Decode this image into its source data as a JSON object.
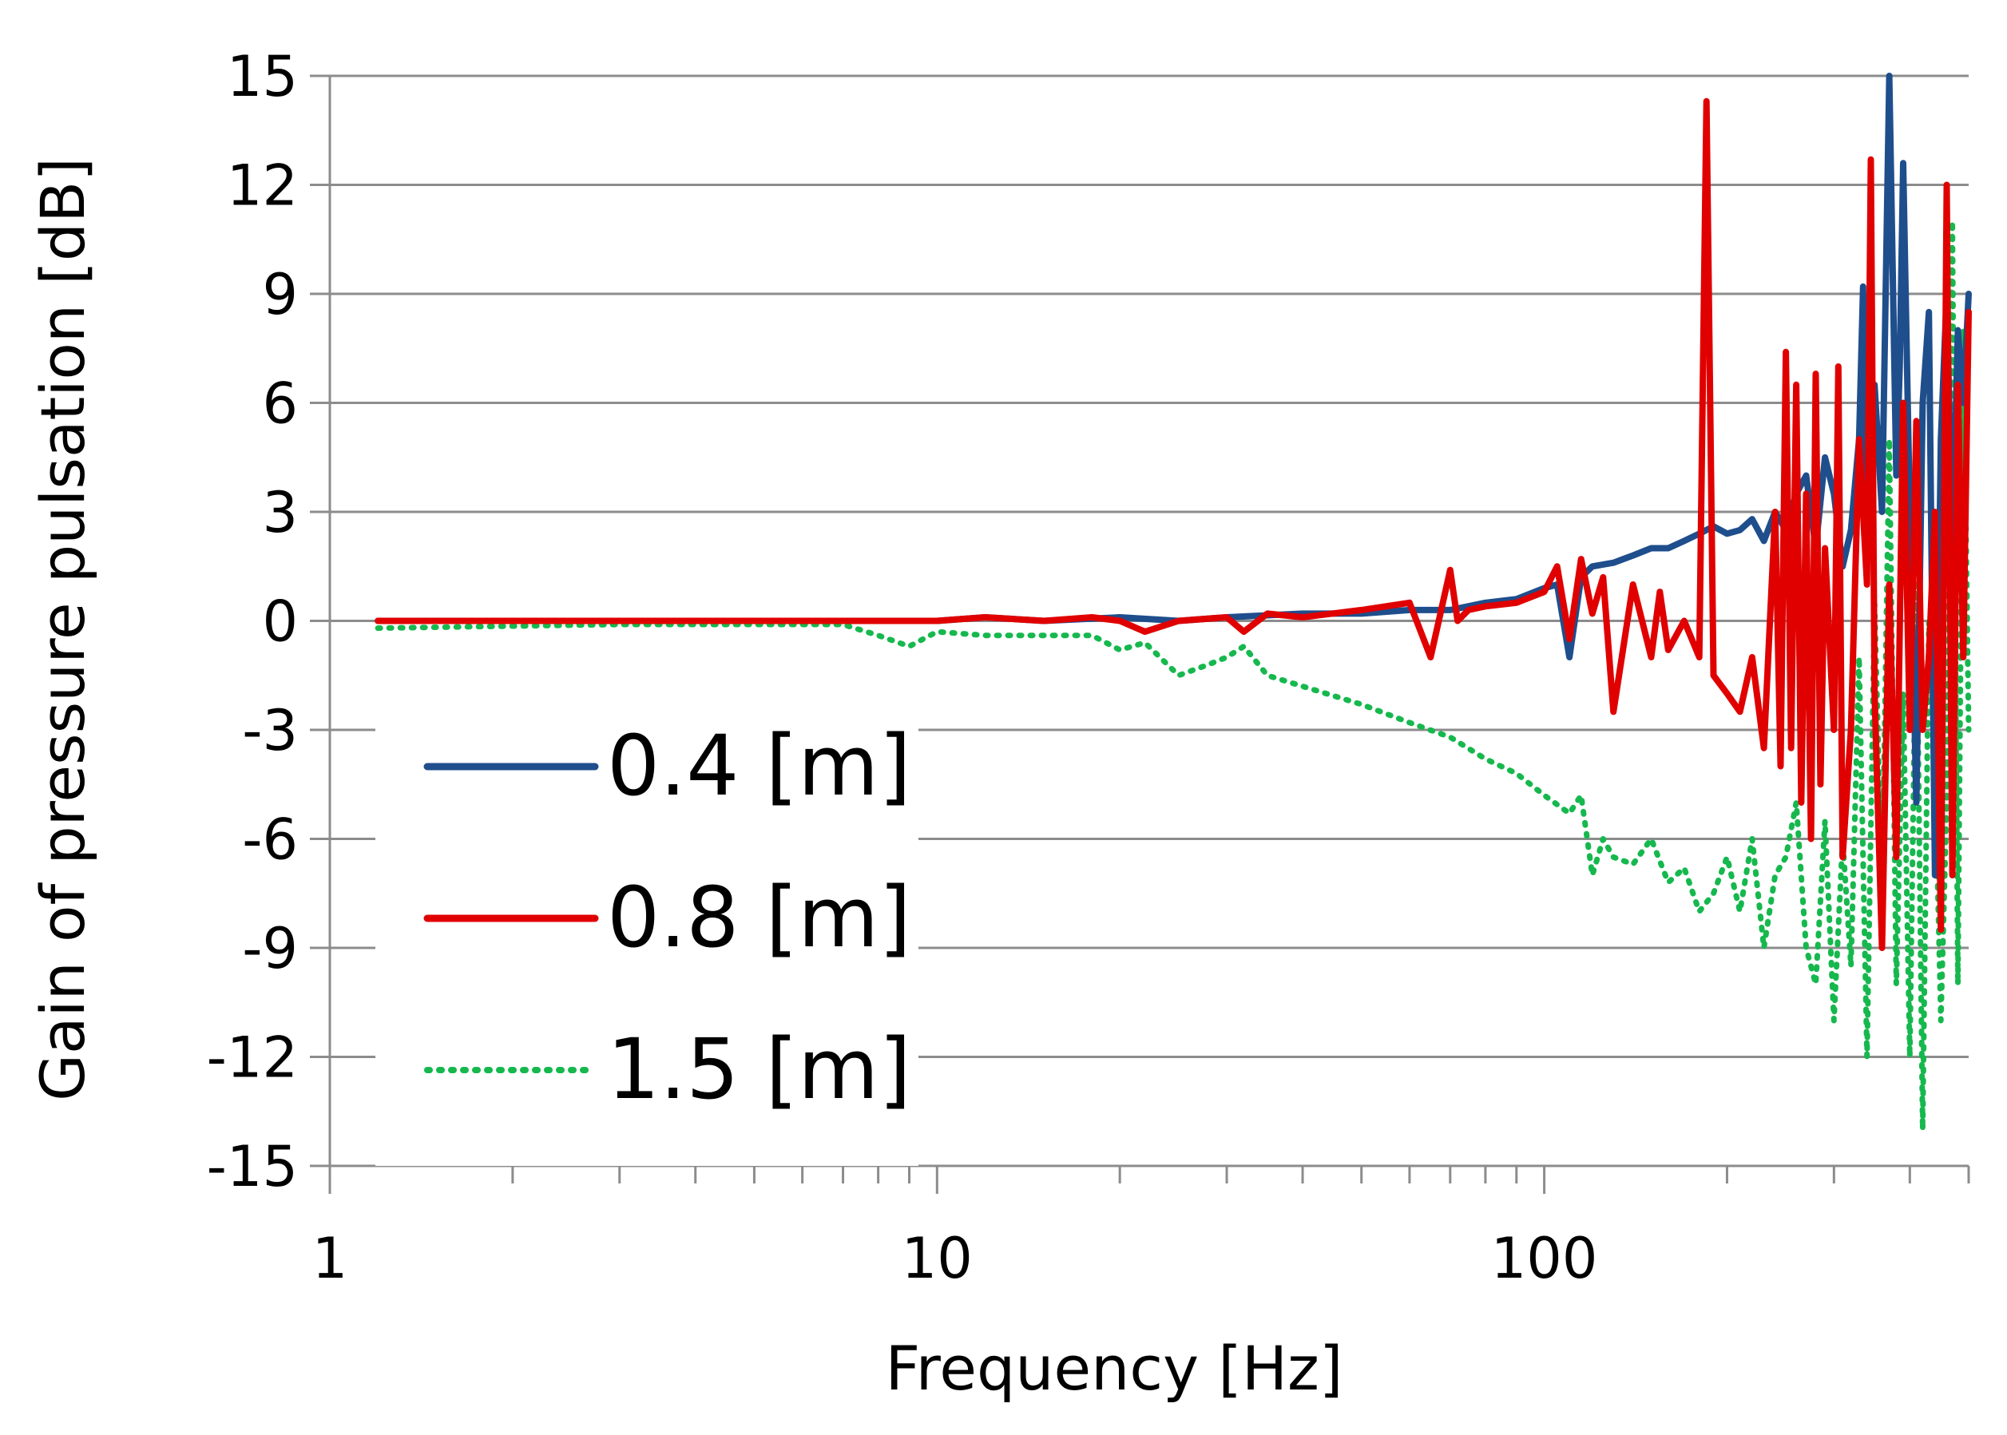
{
  "chart_data": {
    "type": "line",
    "xscale": "log",
    "xlim": [
      1,
      500
    ],
    "ylim": [
      -15,
      15
    ],
    "xlabel": "Frequency [Hz]",
    "ylabel": "Gain of pressure pulsation [dB]",
    "x_ticks": [
      1,
      10,
      100
    ],
    "x_tick_labels": [
      "1",
      "10",
      "100"
    ],
    "y_ticks": [
      15,
      12,
      9,
      6,
      3,
      0,
      -3,
      -6,
      -9,
      -12,
      -15
    ],
    "y_tick_labels": [
      "15",
      "12",
      "9",
      "6",
      "3",
      "0",
      "-3",
      "-6",
      "-9",
      "-12",
      "-15"
    ],
    "grid": "horizontal",
    "legend_position": "lower-left",
    "series": [
      {
        "name": "0.4 [m]",
        "color": "#1f4e8c",
        "style": "solid",
        "x": [
          1.2,
          5,
          10,
          12,
          15,
          20,
          25,
          30,
          40,
          50,
          60,
          70,
          80,
          90,
          100,
          105,
          110,
          115,
          120,
          130,
          140,
          150,
          160,
          170,
          180,
          190,
          200,
          210,
          220,
          230,
          240,
          250,
          260,
          270,
          280,
          290,
          300,
          310,
          320,
          330,
          335,
          340,
          350,
          360,
          370,
          380,
          385,
          390,
          400,
          410,
          420,
          430,
          440,
          450,
          460,
          470,
          480,
          490,
          500
        ],
        "y": [
          0,
          0,
          0,
          0.1,
          0,
          0.1,
          0,
          0.1,
          0.2,
          0.2,
          0.3,
          0.3,
          0.5,
          0.6,
          0.9,
          1.0,
          -1.0,
          1.2,
          1.5,
          1.6,
          1.8,
          2.0,
          2.0,
          2.2,
          2.4,
          2.6,
          2.4,
          2.5,
          2.8,
          2.2,
          3.0,
          2.5,
          3.5,
          4.0,
          2.0,
          4.5,
          3.5,
          1.5,
          2.5,
          5.0,
          9.2,
          2.0,
          6.5,
          3.0,
          15.0,
          4.0,
          7.0,
          12.6,
          3.0,
          -5.0,
          6.0,
          8.5,
          -7.0,
          5.0,
          9.0,
          2.0,
          8.0,
          6.0,
          9.0
        ]
      },
      {
        "name": "0.8 [m]",
        "color": "#e00000",
        "style": "solid",
        "x": [
          1.2,
          5,
          8,
          10,
          12,
          15,
          18,
          20,
          22,
          25,
          30,
          32,
          35,
          40,
          50,
          60,
          65,
          70,
          72,
          75,
          80,
          90,
          100,
          105,
          110,
          115,
          120,
          125,
          130,
          140,
          150,
          155,
          160,
          170,
          180,
          185,
          190,
          200,
          210,
          220,
          230,
          240,
          245,
          250,
          255,
          260,
          265,
          270,
          275,
          280,
          285,
          290,
          300,
          305,
          310,
          320,
          330,
          340,
          345,
          350,
          360,
          370,
          380,
          390,
          400,
          410,
          420,
          430,
          440,
          450,
          460,
          470,
          480,
          490,
          500
        ],
        "y": [
          0,
          0,
          0,
          0,
          0.1,
          0,
          0.1,
          0,
          -0.3,
          0,
          0.1,
          -0.3,
          0.2,
          0.1,
          0.3,
          0.5,
          -1.0,
          1.4,
          0,
          0.3,
          0.4,
          0.5,
          0.8,
          1.5,
          -0.5,
          1.7,
          0.2,
          1.2,
          -2.5,
          1.0,
          -1.0,
          0.8,
          -0.8,
          0,
          -1.0,
          14.3,
          -1.5,
          -2.0,
          -2.5,
          -1.0,
          -3.5,
          3.0,
          -4.0,
          7.4,
          -3.5,
          6.5,
          -5.0,
          3.5,
          -6.0,
          6.8,
          -4.5,
          2.0,
          -3.0,
          7.0,
          -6.5,
          -3.0,
          5.0,
          1.0,
          12.7,
          -2.0,
          -9.0,
          1.0,
          -6.5,
          6.0,
          -3.0,
          5.5,
          -3.0,
          -1.0,
          3.0,
          -8.5,
          12.0,
          -7.0,
          6.5,
          -1.0,
          8.5
        ]
      },
      {
        "name": "1.5 [m]",
        "color": "#16b84e",
        "style": "dotted",
        "x": [
          1.2,
          3,
          5,
          7,
          8,
          9,
          10,
          12,
          15,
          18,
          20,
          22,
          25,
          28,
          30,
          32,
          35,
          40,
          50,
          60,
          70,
          80,
          90,
          100,
          110,
          115,
          120,
          125,
          130,
          140,
          150,
          160,
          170,
          180,
          190,
          200,
          210,
          220,
          230,
          240,
          250,
          260,
          270,
          280,
          290,
          300,
          310,
          320,
          330,
          340,
          350,
          360,
          370,
          380,
          390,
          400,
          410,
          420,
          430,
          440,
          450,
          460,
          470,
          480,
          490,
          500
        ],
        "y": [
          -0.2,
          -0.1,
          -0.1,
          -0.1,
          -0.4,
          -0.7,
          -0.3,
          -0.4,
          -0.4,
          -0.4,
          -0.8,
          -0.6,
          -1.5,
          -1.2,
          -1.0,
          -0.7,
          -1.5,
          -1.8,
          -2.3,
          -2.8,
          -3.2,
          -3.8,
          -4.2,
          -4.8,
          -5.3,
          -4.8,
          -7.0,
          -6.0,
          -6.5,
          -6.7,
          -6.0,
          -7.2,
          -6.8,
          -8.0,
          -7.5,
          -6.5,
          -8.0,
          -6.0,
          -9.0,
          -7.0,
          -6.5,
          -5.0,
          -9.0,
          -10.0,
          -5.5,
          -11.0,
          -6.0,
          -9.5,
          -1.0,
          -12.0,
          0.5,
          -7.5,
          5.0,
          -10.0,
          -2.0,
          -12.0,
          1.0,
          -14.0,
          0.0,
          -4.0,
          -11.0,
          -5.0,
          11.0,
          -10.0,
          8.0,
          -3.0
        ]
      }
    ]
  }
}
